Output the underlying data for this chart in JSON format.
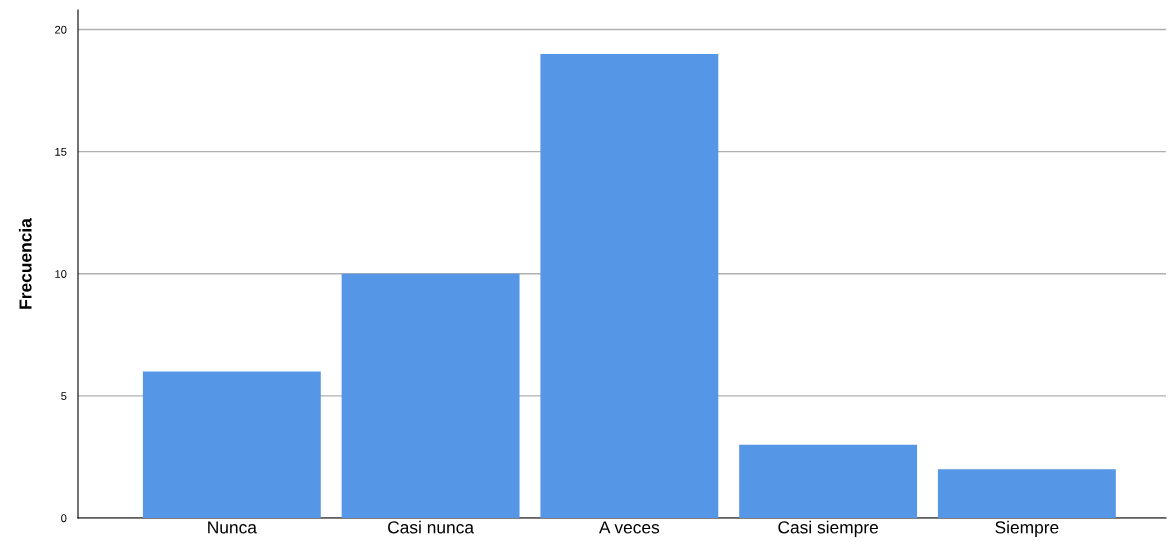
{
  "chart_data": {
    "type": "bar",
    "ylabel": "Frecuencia",
    "categories": [
      "Nunca",
      "Casi nunca",
      "A veces",
      "Casi siempre",
      "Siempre"
    ],
    "values": [
      6,
      10,
      19,
      3,
      2
    ],
    "color": "#5596e6",
    "ylim": [
      0,
      20.8
    ],
    "yticks": [
      0,
      5,
      10,
      15,
      20
    ],
    "grid": "y"
  }
}
